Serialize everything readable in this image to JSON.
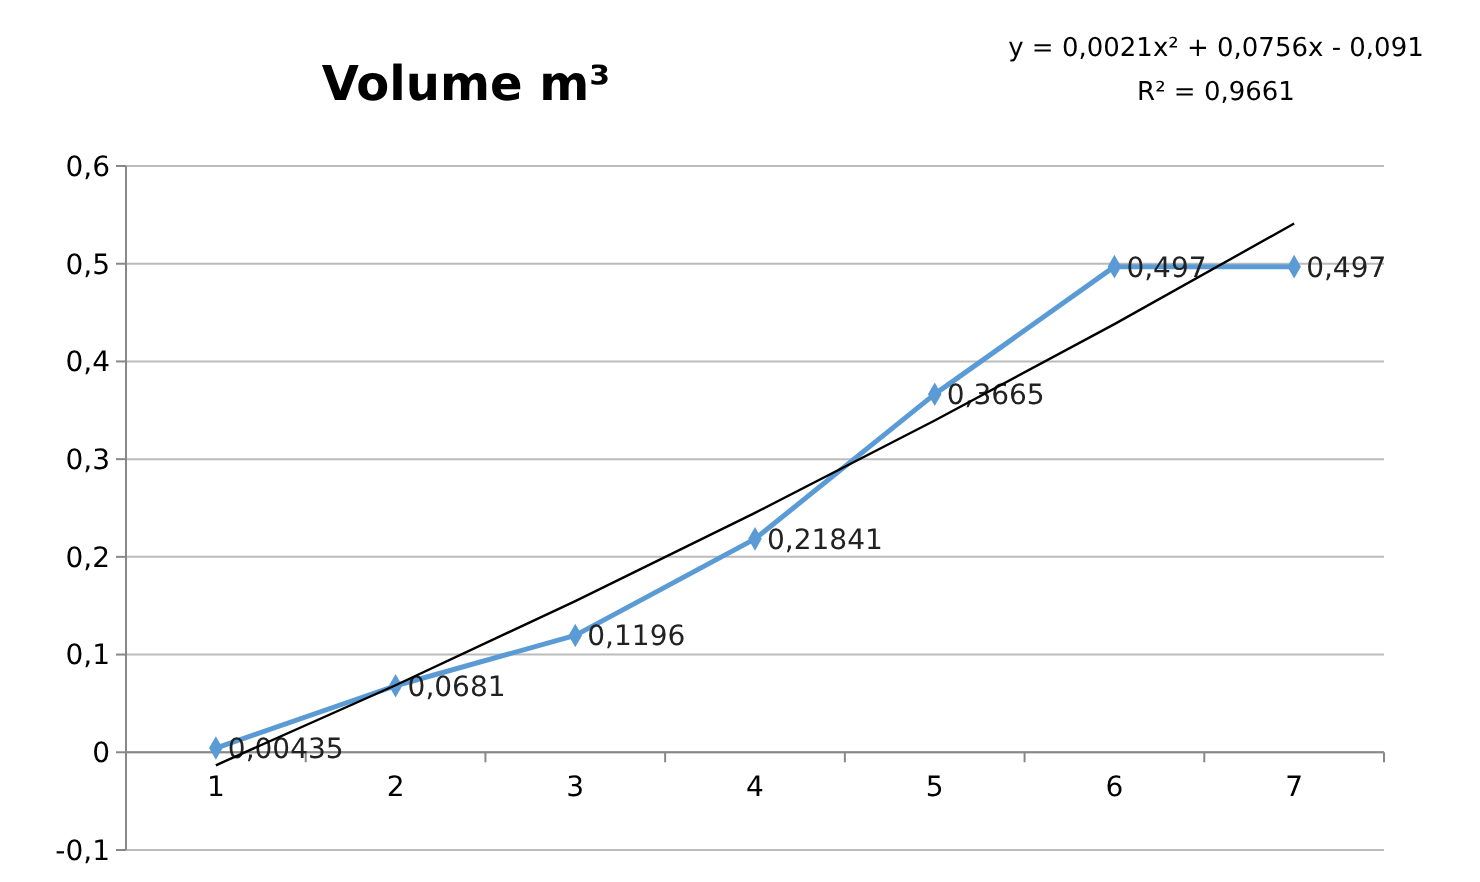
{
  "chart_data": {
    "type": "line",
    "title": "Volume m³",
    "annotations": [
      "y = 0,0021x² + 0,0756x - 0,091",
      "R² = 0,9661"
    ],
    "categories": [
      "1",
      "2",
      "3",
      "4",
      "5",
      "6",
      "7"
    ],
    "series": [
      {
        "color": "#5b9bd5",
        "marker": "diamond",
        "values": [
          0.00435,
          0.0681,
          0.1196,
          0.21841,
          0.3665,
          0.497,
          0.497
        ],
        "value_labels": [
          "0,00435",
          "0,0681",
          "0,1196",
          "0,21841",
          "0,3665",
          "0,497",
          "0,497"
        ]
      },
      {
        "color": "#000000",
        "marker": "none",
        "x": [
          "1",
          "2",
          "3",
          "4",
          "5",
          "6",
          "7"
        ],
        "values": [
          -0.0133,
          0.0686,
          0.1547,
          0.245,
          0.3395,
          0.4382,
          0.5411
        ]
      }
    ],
    "ylim": [
      -0.1,
      0.6
    ],
    "yticks": [
      {
        "value": -0.1,
        "label": "-0,1"
      },
      {
        "value": 0,
        "label": "0"
      },
      {
        "value": 0.1,
        "label": "0,1"
      },
      {
        "value": 0.2,
        "label": "0,2"
      },
      {
        "value": 0.3,
        "label": "0,3"
      },
      {
        "value": 0.4,
        "label": "0,4"
      },
      {
        "value": 0.5,
        "label": "0,5"
      },
      {
        "value": 0.6,
        "label": "0,6"
      }
    ],
    "grid": "y"
  }
}
